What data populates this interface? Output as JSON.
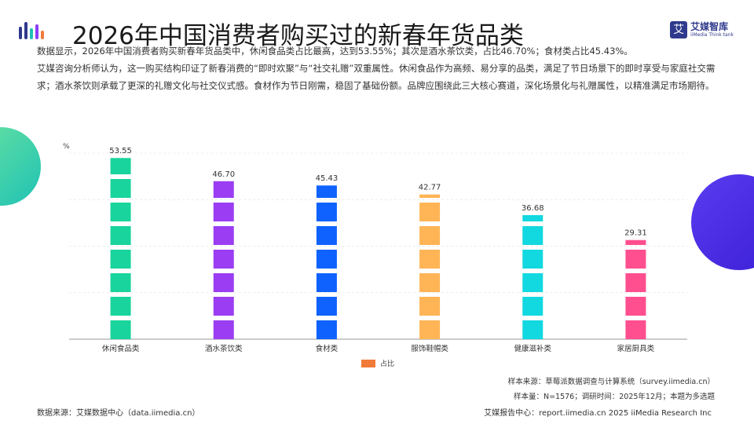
{
  "header": {
    "title": "2026年中国消费者购买过的新春年货品类",
    "brand_icon": "艾",
    "brand_name": "艾媒智库",
    "brand_en": "iiMedia Think tank",
    "logo_colors": [
      "#2f3a8c",
      "#f07a3a",
      "#1fc2b5",
      "#8a3ffc"
    ]
  },
  "description": {
    "line1": "数据显示，2026年中国消费者购买新春年货品类中，休闲食品类占比最高，达到53.55%；其次是酒水茶饮类，占比46.70%；食材类占比45.43%。",
    "line2": "艾媒咨询分析师认为，这一购买结构印证了新春消费的“即时欢聚”与“社交礼赠”双重属性。休闲食品作为高频、易分享的品类，满足了节日场景下的即时享受与家庭社交需求；酒水茶饮则承载了更深的礼赠文化与社交仪式感。食材作为节日刚需，稳固了基础份额。品牌应围绕此三大核心赛道，深化场景化与礼赠属性，以精准满足市场期待。"
  },
  "chart_data": {
    "type": "bar",
    "unit_label": "%",
    "categories": [
      "休闲食品类",
      "酒水茶饮类",
      "食材类",
      "服饰鞋帽类",
      "健康滋补类",
      "家居厨具类"
    ],
    "series": [
      {
        "name": "占比",
        "values": [
          53.55,
          46.7,
          45.43,
          42.77,
          36.68,
          29.31
        ]
      }
    ],
    "value_labels": [
      "53.55",
      "46.70",
      "45.43",
      "42.77",
      "36.68",
      "29.31"
    ],
    "bar_colors": [
      "#19d49c",
      "#9b3df2",
      "#0f62fe",
      "#ffb455",
      "#12d8e0",
      "#ff4f8f"
    ],
    "legend_color": "#f07a3a",
    "ylim": [
      0,
      55
    ],
    "grid": true,
    "legend_position": "bottom"
  },
  "notes": {
    "source": "样本来源：草莓派数据调查与计算系统（survey.iimedia.cn）",
    "sample": "样本量：N=1576；调研时间：2025年12月；本题为多选题"
  },
  "footer": {
    "data_source": "数据来源：艾媒数据中心（data.iimedia.cn）",
    "report": "艾媒报告中心：report.iimedia.cn   2025 iiMedia Research Inc"
  }
}
